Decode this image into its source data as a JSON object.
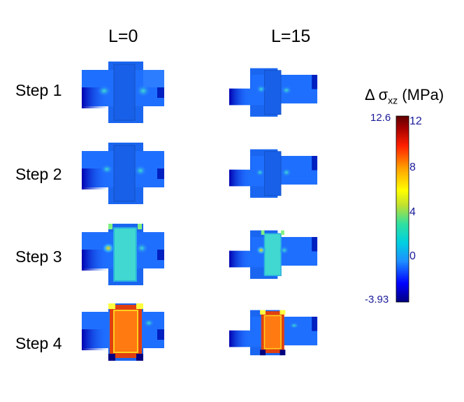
{
  "columns": [
    "L=0",
    "L=15"
  ],
  "rows": [
    "Step 1",
    "Step 2",
    "Step 3",
    "Step 4"
  ],
  "colorbar": {
    "title_prefix": "Δ σ",
    "title_sub": "xz",
    "title_unit": "(MPa)",
    "max_label": "12.6",
    "min_label": "-3.93",
    "ticks": [
      "12",
      "8",
      "4",
      "0"
    ],
    "colors": [
      "#000080",
      "#0000ff",
      "#1e90ff",
      "#00d0e0",
      "#30e0a0",
      "#c0e030",
      "#ffff00",
      "#ffa000",
      "#ff2000",
      "#a00000",
      "#600000"
    ]
  }
}
